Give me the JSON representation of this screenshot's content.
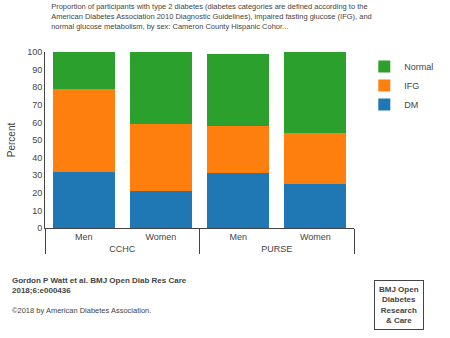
{
  "chart_data": {
    "type": "bar",
    "stacked": true,
    "title": "Proportion of participants with type 2 diabetes (diabetes categories are defined according to the\nAmerican Diabetes Association 2010 Diagnostic Guidelines), impaired fasting glucose (IFG), and\nnormal glucose metabolism, by sex: Cameron County Hispanic Cohor...",
    "ylabel": "Percent",
    "categories": [
      "Men",
      "Women",
      "Men",
      "Women"
    ],
    "groups": [
      "CCHC",
      "CCHC",
      "PURSE",
      "PURSE"
    ],
    "series": [
      {
        "name": "DM",
        "values": [
          32,
          21,
          31,
          25
        ]
      },
      {
        "name": "IFG",
        "values": [
          47,
          38,
          27,
          29
        ]
      },
      {
        "name": "Normal",
        "values": [
          21,
          41,
          41,
          46
        ]
      }
    ],
    "ylim": [
      0,
      100
    ],
    "yticks": [
      0,
      10,
      20,
      30,
      40,
      50,
      60,
      70,
      80,
      90,
      100
    ],
    "grid": false,
    "legend": "upper right",
    "annotations": [
      "Gordon P Watt et al. BMJ Open Diab Res Care\n2018;6:e000436",
      "©2018 by American Diabetes Association.",
      "BMJ Open\nDiabetes\nResearch\n& Care"
    ]
  }
}
